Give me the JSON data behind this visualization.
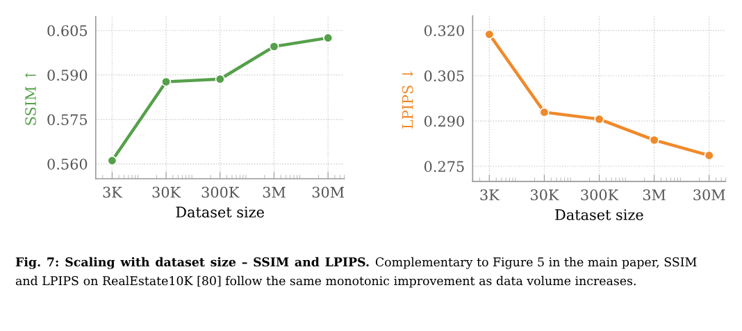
{
  "chart_data": [
    {
      "type": "line",
      "xlabel": "Dataset size",
      "ylabel": "SSIM ↑",
      "log": "x",
      "x": [
        3000,
        30000,
        300000,
        3000000,
        30000000
      ],
      "series": [
        {
          "color": "#55a04a",
          "values": [
            0.5611,
            0.5877,
            0.5886,
            0.5996,
            0.6025
          ]
        }
      ],
      "xlim": [
        1490,
        60000000
      ],
      "xticks": [
        {
          "value": 3000,
          "label": "3K"
        },
        {
          "value": 30000,
          "label": "30K"
        },
        {
          "value": 300000,
          "label": "300K"
        },
        {
          "value": 3000000,
          "label": "3M"
        },
        {
          "value": 30000000,
          "label": "30M"
        }
      ],
      "ylim": [
        0.555,
        0.6097
      ],
      "yticks": [
        {
          "value": 0.56,
          "label": "0.560"
        },
        {
          "value": 0.575,
          "label": "0.575"
        },
        {
          "value": 0.59,
          "label": "0.590"
        },
        {
          "value": 0.605,
          "label": "0.605"
        }
      ],
      "grid": true,
      "marker": "circle",
      "line_style": "solid",
      "legend": false,
      "annotations": [
        "Fig. 7: Scaling with dataset size – SSIM and LPIPS.",
        "Complementary to Figure 5 in the main paper, SSIM and LPIPS on RealEstate10K [80] follow the same monotonic improvement as data volume increases."
      ]
    },
    {
      "type": "line",
      "xlabel": "Dataset size",
      "ylabel": "LPIPS ↓",
      "log": "x",
      "x": [
        3000,
        30000,
        300000,
        3000000,
        30000000
      ],
      "series": [
        {
          "color": "#f0892a",
          "values": [
            0.3187,
            0.2929,
            0.2906,
            0.2837,
            0.2786
          ]
        }
      ],
      "xlim": [
        1490,
        60000000
      ],
      "xticks": [
        {
          "value": 3000,
          "label": "3K"
        },
        {
          "value": 30000,
          "label": "30K"
        },
        {
          "value": 300000,
          "label": "300K"
        },
        {
          "value": 3000000,
          "label": "3M"
        },
        {
          "value": 30000000,
          "label": "30M"
        }
      ],
      "ylim": [
        0.27,
        0.3248
      ],
      "yticks": [
        {
          "value": 0.275,
          "label": "0.275"
        },
        {
          "value": 0.29,
          "label": "0.290"
        },
        {
          "value": 0.305,
          "label": "0.305"
        },
        {
          "value": 0.32,
          "label": "0.320"
        }
      ],
      "grid": true,
      "marker": "circle",
      "line_style": "solid",
      "legend": false
    }
  ]
}
